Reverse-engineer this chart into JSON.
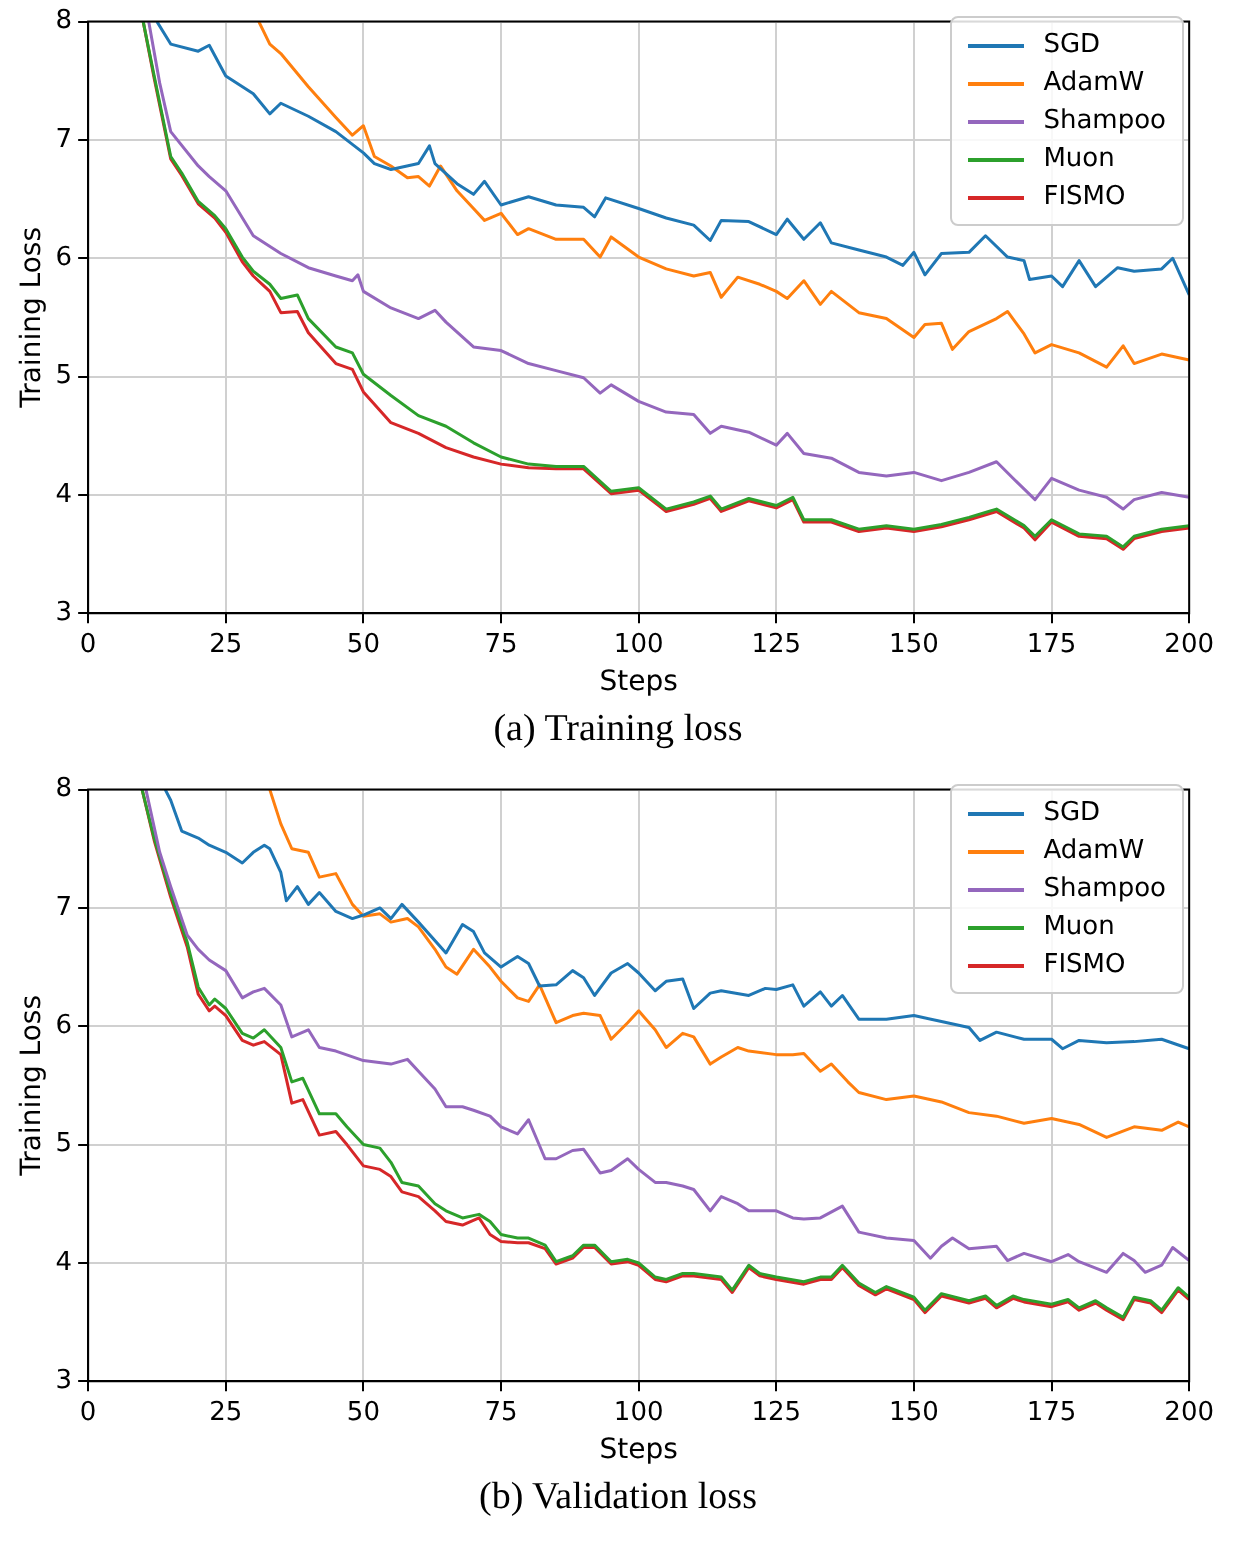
{
  "chart_data": [
    {
      "type": "line",
      "xlabel": "Steps",
      "ylabel": "Training Loss",
      "xlim": [
        0,
        200
      ],
      "ylim": [
        3,
        8
      ],
      "xticks": [
        0,
        25,
        50,
        75,
        100,
        125,
        150,
        175,
        200
      ],
      "yticks": [
        3,
        4,
        5,
        6,
        7,
        8
      ],
      "grid": true,
      "legend": "top right",
      "annotations": [
        "(a) Training loss"
      ],
      "series": [
        {
          "name": "SGD",
          "color": "#1f77b4",
          "x": [
            12.5,
            15,
            20,
            22,
            25,
            30,
            33,
            35,
            40,
            45,
            50,
            52,
            55,
            60,
            62,
            63,
            67,
            70,
            72,
            75,
            80,
            85,
            90,
            92,
            94,
            100,
            105,
            110,
            113,
            115,
            120,
            125,
            127,
            130,
            133,
            135,
            140,
            145,
            148,
            150,
            152,
            155,
            160,
            163,
            167,
            170,
            171,
            175,
            177,
            180,
            183,
            187,
            190,
            195,
            197,
            200
          ],
          "values": [
            8,
            7.81,
            7.75,
            7.8,
            7.54,
            7.39,
            7.22,
            7.31,
            7.2,
            7.07,
            6.89,
            6.8,
            6.75,
            6.8,
            6.95,
            6.8,
            6.63,
            6.54,
            6.65,
            6.45,
            6.52,
            6.45,
            6.43,
            6.35,
            6.51,
            6.42,
            6.34,
            6.28,
            6.15,
            6.32,
            6.31,
            6.2,
            6.33,
            6.16,
            6.3,
            6.13,
            6.07,
            6.01,
            5.94,
            6.05,
            5.86,
            6.04,
            6.05,
            6.19,
            6.01,
            5.98,
            5.82,
            5.85,
            5.76,
            5.98,
            5.76,
            5.92,
            5.89,
            5.91,
            6.0,
            5.69
          ]
        },
        {
          "name": "AdamW",
          "color": "#ff7f0e",
          "x": [
            31,
            33,
            35,
            40,
            45,
            48,
            50,
            52,
            55,
            58,
            60,
            62,
            64,
            67,
            70,
            72,
            75,
            78,
            80,
            85,
            90,
            93,
            95,
            100,
            105,
            110,
            113,
            115,
            118,
            122,
            125,
            127,
            130,
            133,
            135,
            140,
            145,
            150,
            152,
            155,
            157,
            160,
            165,
            167,
            170,
            172,
            175,
            180,
            185,
            188,
            190,
            195,
            200
          ],
          "values": [
            8,
            7.81,
            7.73,
            7.45,
            7.19,
            7.04,
            7.12,
            6.86,
            6.78,
            6.68,
            6.69,
            6.61,
            6.78,
            6.57,
            6.42,
            6.32,
            6.38,
            6.2,
            6.25,
            6.16,
            6.16,
            6.01,
            6.18,
            6.01,
            5.91,
            5.85,
            5.88,
            5.67,
            5.84,
            5.78,
            5.72,
            5.66,
            5.81,
            5.61,
            5.72,
            5.54,
            5.49,
            5.33,
            5.44,
            5.45,
            5.23,
            5.38,
            5.49,
            5.55,
            5.36,
            5.2,
            5.27,
            5.2,
            5.08,
            5.26,
            5.11,
            5.19,
            5.14
          ]
        },
        {
          "name": "Shampoo",
          "color": "#9467bd",
          "x": [
            11,
            13,
            15,
            20,
            22,
            25,
            30,
            35,
            40,
            45,
            48,
            49,
            50,
            55,
            60,
            63,
            65,
            70,
            75,
            80,
            85,
            90,
            93,
            95,
            100,
            105,
            110,
            113,
            115,
            120,
            125,
            127,
            130,
            135,
            140,
            145,
            150,
            155,
            160,
            165,
            168,
            172,
            175,
            180,
            185,
            188,
            190,
            195,
            200
          ],
          "values": [
            8,
            7.48,
            7.07,
            6.78,
            6.69,
            6.57,
            6.19,
            6.04,
            5.92,
            5.85,
            5.81,
            5.86,
            5.72,
            5.58,
            5.49,
            5.56,
            5.46,
            5.25,
            5.22,
            5.11,
            5.05,
            4.99,
            4.86,
            4.93,
            4.79,
            4.7,
            4.68,
            4.52,
            4.58,
            4.53,
            4.42,
            4.52,
            4.35,
            4.31,
            4.19,
            4.16,
            4.19,
            4.12,
            4.19,
            4.28,
            4.14,
            3.96,
            4.14,
            4.04,
            3.98,
            3.88,
            3.96,
            4.02,
            3.98
          ]
        },
        {
          "name": "Muon",
          "color": "#2ca02c",
          "x": [
            10,
            12,
            15,
            17,
            20,
            23,
            25,
            28,
            30,
            33,
            35,
            38,
            40,
            45,
            48,
            50,
            55,
            60,
            65,
            70,
            75,
            80,
            85,
            90,
            95,
            100,
            105,
            110,
            113,
            115,
            120,
            125,
            128,
            130,
            135,
            140,
            145,
            150,
            155,
            160,
            165,
            170,
            172,
            175,
            180,
            185,
            188,
            190,
            195,
            200
          ],
          "values": [
            8,
            7.54,
            6.86,
            6.72,
            6.48,
            6.36,
            6.25,
            6.01,
            5.89,
            5.78,
            5.66,
            5.69,
            5.49,
            5.25,
            5.2,
            5.02,
            4.84,
            4.67,
            4.58,
            4.44,
            4.32,
            4.26,
            4.24,
            4.24,
            4.03,
            4.06,
            3.88,
            3.94,
            3.99,
            3.88,
            3.97,
            3.91,
            3.98,
            3.79,
            3.79,
            3.71,
            3.74,
            3.71,
            3.75,
            3.81,
            3.88,
            3.74,
            3.65,
            3.79,
            3.67,
            3.65,
            3.56,
            3.65,
            3.71,
            3.74
          ]
        },
        {
          "name": "FISMO",
          "color": "#d62728",
          "x": [
            10,
            12,
            15,
            17,
            20,
            23,
            25,
            28,
            30,
            33,
            35,
            38,
            40,
            45,
            48,
            50,
            55,
            60,
            65,
            70,
            75,
            80,
            85,
            90,
            95,
            100,
            105,
            110,
            113,
            115,
            120,
            125,
            128,
            130,
            135,
            140,
            145,
            150,
            155,
            160,
            165,
            170,
            172,
            175,
            180,
            185,
            188,
            190,
            195,
            200
          ],
          "values": [
            8,
            7.52,
            6.84,
            6.7,
            6.46,
            6.34,
            6.22,
            5.97,
            5.85,
            5.72,
            5.54,
            5.55,
            5.37,
            5.11,
            5.06,
            4.87,
            4.61,
            4.52,
            4.4,
            4.32,
            4.26,
            4.23,
            4.22,
            4.22,
            4.01,
            4.04,
            3.86,
            3.92,
            3.97,
            3.86,
            3.95,
            3.89,
            3.96,
            3.77,
            3.77,
            3.69,
            3.72,
            3.69,
            3.73,
            3.79,
            3.86,
            3.72,
            3.62,
            3.77,
            3.65,
            3.63,
            3.54,
            3.63,
            3.69,
            3.72
          ]
        }
      ]
    },
    {
      "type": "line",
      "xlabel": "Steps",
      "ylabel": "Training Loss",
      "xlim": [
        0,
        200
      ],
      "ylim": [
        3,
        8
      ],
      "xticks": [
        0,
        25,
        50,
        75,
        100,
        125,
        150,
        175,
        200
      ],
      "yticks": [
        3,
        4,
        5,
        6,
        7,
        8
      ],
      "grid": true,
      "legend": "top right",
      "annotations": [
        "(b) Validation loss"
      ],
      "series": [
        {
          "name": "SGD",
          "color": "#1f77b4",
          "x": [
            14,
            15,
            17,
            20,
            22,
            25,
            28,
            30,
            32,
            33,
            35,
            36,
            38,
            40,
            42,
            45,
            48,
            50,
            53,
            55,
            57,
            60,
            65,
            68,
            70,
            72,
            75,
            78,
            80,
            82,
            85,
            88,
            90,
            92,
            95,
            98,
            100,
            103,
            105,
            108,
            110,
            113,
            115,
            120,
            123,
            125,
            128,
            130,
            133,
            135,
            137,
            140,
            145,
            150,
            155,
            160,
            162,
            165,
            170,
            175,
            177,
            180,
            185,
            190,
            195,
            200
          ],
          "values": [
            8,
            7.91,
            7.65,
            7.59,
            7.53,
            7.47,
            7.38,
            7.47,
            7.53,
            7.5,
            7.3,
            7.06,
            7.18,
            7.03,
            7.13,
            6.97,
            6.91,
            6.94,
            7.0,
            6.91,
            7.03,
            6.88,
            6.62,
            6.86,
            6.8,
            6.62,
            6.5,
            6.59,
            6.53,
            6.34,
            6.35,
            6.47,
            6.41,
            6.26,
            6.45,
            6.53,
            6.45,
            6.3,
            6.38,
            6.4,
            6.15,
            6.28,
            6.3,
            6.26,
            6.32,
            6.31,
            6.35,
            6.17,
            6.29,
            6.17,
            6.26,
            6.06,
            6.06,
            6.09,
            6.04,
            5.99,
            5.88,
            5.95,
            5.89,
            5.89,
            5.81,
            5.88,
            5.86,
            5.87,
            5.89,
            5.81
          ]
        },
        {
          "name": "AdamW",
          "color": "#ff7f0e",
          "x": [
            33,
            35,
            37,
            40,
            42,
            45,
            48,
            50,
            53,
            55,
            58,
            60,
            63,
            65,
            67,
            70,
            73,
            75,
            78,
            80,
            82,
            85,
            88,
            90,
            93,
            95,
            98,
            100,
            103,
            105,
            108,
            110,
            113,
            115,
            118,
            120,
            125,
            128,
            130,
            133,
            135,
            138,
            140,
            145,
            150,
            155,
            160,
            165,
            170,
            175,
            180,
            185,
            190,
            195,
            198,
            200
          ],
          "values": [
            8,
            7.71,
            7.5,
            7.47,
            7.26,
            7.29,
            7.03,
            6.93,
            6.95,
            6.88,
            6.91,
            6.84,
            6.65,
            6.5,
            6.44,
            6.65,
            6.5,
            6.38,
            6.24,
            6.21,
            6.35,
            6.03,
            6.09,
            6.11,
            6.09,
            5.89,
            6.03,
            6.13,
            5.97,
            5.82,
            5.94,
            5.91,
            5.68,
            5.74,
            5.82,
            5.79,
            5.76,
            5.76,
            5.77,
            5.62,
            5.68,
            5.53,
            5.44,
            5.38,
            5.41,
            5.36,
            5.27,
            5.24,
            5.18,
            5.22,
            5.17,
            5.06,
            5.15,
            5.12,
            5.19,
            5.15
          ]
        },
        {
          "name": "Shampoo",
          "color": "#9467bd",
          "x": [
            10.5,
            13,
            15,
            18,
            20,
            22,
            25,
            28,
            30,
            32,
            35,
            37,
            40,
            42,
            45,
            50,
            55,
            58,
            60,
            63,
            65,
            68,
            70,
            73,
            75,
            78,
            80,
            83,
            85,
            88,
            90,
            93,
            95,
            98,
            100,
            103,
            105,
            108,
            110,
            113,
            115,
            118,
            120,
            125,
            128,
            130,
            133,
            137,
            140,
            145,
            150,
            153,
            155,
            157,
            160,
            165,
            167,
            170,
            175,
            178,
            180,
            185,
            188,
            190,
            192,
            195,
            197,
            200
          ],
          "values": [
            8,
            7.47,
            7.18,
            6.77,
            6.65,
            6.56,
            6.47,
            6.24,
            6.29,
            6.32,
            6.18,
            5.91,
            5.97,
            5.82,
            5.79,
            5.71,
            5.68,
            5.72,
            5.62,
            5.47,
            5.32,
            5.32,
            5.29,
            5.24,
            5.15,
            5.09,
            5.21,
            4.88,
            4.88,
            4.95,
            4.96,
            4.76,
            4.78,
            4.88,
            4.79,
            4.68,
            4.68,
            4.65,
            4.62,
            4.44,
            4.56,
            4.5,
            4.44,
            4.44,
            4.38,
            4.37,
            4.38,
            4.48,
            4.26,
            4.21,
            4.19,
            4.04,
            4.14,
            4.21,
            4.12,
            4.14,
            4.02,
            4.08,
            4.01,
            4.07,
            4.01,
            3.92,
            4.08,
            4.02,
            3.92,
            3.98,
            4.13,
            4.02
          ]
        },
        {
          "name": "Muon",
          "color": "#2ca02c",
          "x": [
            9.8,
            12,
            15,
            18,
            20,
            22,
            23,
            25,
            28,
            30,
            32,
            35,
            37,
            39,
            42,
            45,
            47,
            50,
            53,
            55,
            57,
            60,
            63,
            65,
            68,
            71,
            73,
            75,
            78,
            80,
            83,
            85,
            88,
            90,
            92,
            95,
            98,
            100,
            103,
            105,
            108,
            110,
            115,
            117,
            120,
            122,
            125,
            130,
            133,
            135,
            137,
            140,
            143,
            145,
            150,
            152,
            155,
            160,
            163,
            165,
            168,
            170,
            175,
            178,
            180,
            183,
            185,
            188,
            190,
            193,
            195,
            198,
            200
          ],
          "values": [
            8,
            7.59,
            7.12,
            6.71,
            6.33,
            6.18,
            6.23,
            6.15,
            5.94,
            5.9,
            5.97,
            5.82,
            5.53,
            5.56,
            5.26,
            5.26,
            5.15,
            5.0,
            4.97,
            4.85,
            4.68,
            4.65,
            4.5,
            4.44,
            4.38,
            4.41,
            4.35,
            4.24,
            4.21,
            4.21,
            4.15,
            4.01,
            4.06,
            4.15,
            4.15,
            4.01,
            4.03,
            4.0,
            3.88,
            3.86,
            3.91,
            3.91,
            3.88,
            3.77,
            3.98,
            3.91,
            3.88,
            3.84,
            3.88,
            3.88,
            3.98,
            3.83,
            3.75,
            3.8,
            3.71,
            3.6,
            3.74,
            3.68,
            3.72,
            3.64,
            3.72,
            3.69,
            3.65,
            3.69,
            3.62,
            3.68,
            3.62,
            3.54,
            3.71,
            3.68,
            3.6,
            3.79,
            3.71
          ]
        },
        {
          "name": "FISMO",
          "color": "#d62728",
          "x": [
            9.8,
            12,
            15,
            18,
            20,
            22,
            23,
            25,
            28,
            30,
            32,
            35,
            37,
            39,
            42,
            45,
            47,
            50,
            53,
            55,
            57,
            60,
            63,
            65,
            68,
            71,
            73,
            75,
            78,
            80,
            83,
            85,
            88,
            90,
            92,
            95,
            98,
            100,
            103,
            105,
            108,
            110,
            115,
            117,
            120,
            122,
            125,
            130,
            133,
            135,
            137,
            140,
            143,
            145,
            150,
            152,
            155,
            160,
            163,
            165,
            168,
            170,
            175,
            178,
            180,
            183,
            185,
            188,
            190,
            193,
            195,
            198,
            200
          ],
          "values": [
            8,
            7.57,
            7.09,
            6.67,
            6.27,
            6.13,
            6.17,
            6.09,
            5.88,
            5.84,
            5.87,
            5.76,
            5.35,
            5.38,
            5.08,
            5.11,
            5.0,
            4.82,
            4.79,
            4.73,
            4.6,
            4.56,
            4.44,
            4.35,
            4.32,
            4.38,
            4.24,
            4.18,
            4.17,
            4.17,
            4.12,
            3.99,
            4.04,
            4.13,
            4.13,
            3.99,
            4.01,
            3.98,
            3.86,
            3.84,
            3.89,
            3.89,
            3.86,
            3.75,
            3.96,
            3.89,
            3.86,
            3.82,
            3.86,
            3.86,
            3.96,
            3.81,
            3.73,
            3.78,
            3.69,
            3.58,
            3.72,
            3.66,
            3.7,
            3.62,
            3.7,
            3.67,
            3.63,
            3.67,
            3.6,
            3.66,
            3.6,
            3.52,
            3.69,
            3.66,
            3.58,
            3.77,
            3.69
          ]
        }
      ]
    }
  ]
}
